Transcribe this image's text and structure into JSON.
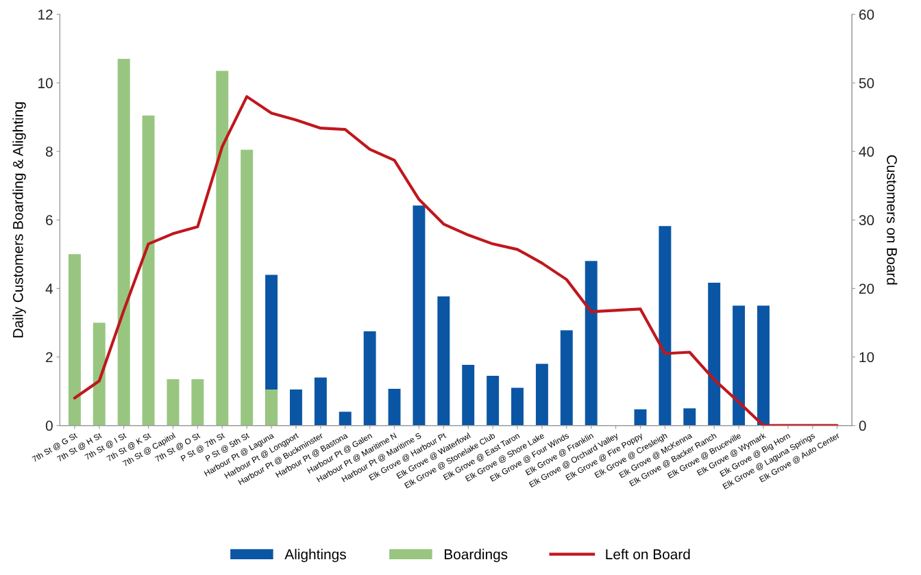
{
  "chart_data": {
    "type": "bar",
    "ylabel": "Daily Customers Boarding & Alighting",
    "y2label": "Customers on Board",
    "categories": [
      "7th St @ G St",
      "7th St @ H St",
      "7th St @ I St",
      "7th St @ K St",
      "7th St @ Capitol",
      "7th St @ O St",
      "P St @ 7th St",
      "P St @ 5th St",
      "Harbour Pt @ Laguna",
      "Harbour Pt @ Longport",
      "Harbour Pt @ Buckminster",
      "Harbour Pt @ Bastona",
      "Harbour Pt @ Galen",
      "Harbour Pt @ Maritime N",
      "Harbour Pt @ Maritime S",
      "Elk Grove @ Harbour Pt",
      "Elk Grove @ Waterfowl",
      "Elk Grove @ Stonelake Club",
      "Elk Grove @ East Taron",
      "Elk Grove @ Shore Lake",
      "Elk Grove @ Four Winds",
      "Elk Grove @ Franklin",
      "Elk Grove @ Orchard Valley",
      "Elk Grove @ Fire Poppy",
      "Elk Grove @ Cresleigh",
      "Elk Grove @ McKenna",
      "Elk Grove @ Backer Ranch",
      "Elk Grove @ Bruceville",
      "Elk Grove @ Wymark",
      "Elk Grove @ Big Horn",
      "Elk Grove @ Laguna Springs",
      "Elk Grove @ Auto Center"
    ],
    "series": [
      {
        "name": "Alightings",
        "color": "#0b56a4",
        "values": [
          null,
          null,
          null,
          null,
          null,
          null,
          null,
          null,
          4.4,
          1.05,
          1.4,
          0.4,
          2.75,
          1.07,
          6.42,
          3.77,
          1.77,
          1.45,
          1.1,
          1.8,
          2.78,
          4.8,
          null,
          0.47,
          5.82,
          0.5,
          4.17,
          3.5,
          3.5,
          null,
          null,
          null
        ]
      },
      {
        "name": "Boardings",
        "color": "#98c680",
        "values": [
          5.0,
          3.0,
          10.7,
          9.05,
          1.35,
          1.35,
          10.35,
          8.05,
          1.05,
          null,
          null,
          null,
          null,
          null,
          null,
          null,
          null,
          null,
          null,
          null,
          null,
          null,
          null,
          null,
          null,
          null,
          null,
          null,
          null,
          null,
          null,
          null
        ]
      },
      {
        "name": "Left on Board",
        "type": "line",
        "axis": "y2",
        "color": "#c0171d",
        "values": [
          4,
          6.5,
          16.8,
          26.5,
          28,
          29,
          40.7,
          48,
          45.6,
          44.6,
          43.4,
          43.2,
          40.3,
          38.7,
          33,
          29.4,
          27.8,
          26.5,
          25.7,
          23.7,
          21.3,
          16.6,
          16.8,
          17,
          10.5,
          10.7,
          6.7,
          3.4,
          0,
          0,
          0,
          0
        ]
      }
    ],
    "ylim": [
      0,
      12
    ],
    "yticks": [
      0,
      2,
      4,
      6,
      8,
      10,
      12
    ],
    "y2lim": [
      0,
      60
    ],
    "y2ticks": [
      0,
      10,
      20,
      30,
      40,
      50,
      60
    ],
    "grid": false,
    "legend": "bottom",
    "marker": "none",
    "line_style": "solid"
  }
}
